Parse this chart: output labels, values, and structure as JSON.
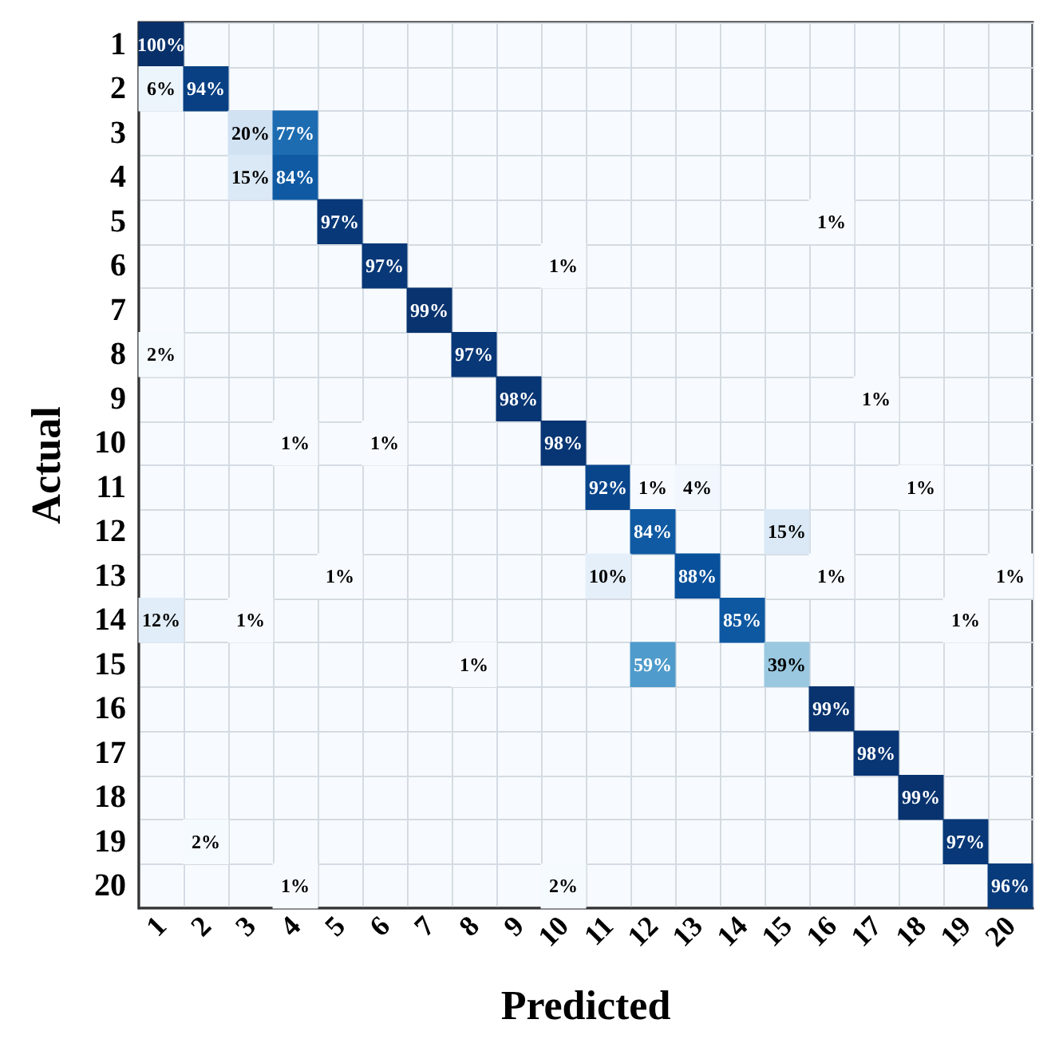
{
  "chart_data": {
    "type": "heatmap",
    "xlabel": "Predicted",
    "ylabel": "Actual",
    "grid": true,
    "categories": [
      "1",
      "2",
      "3",
      "4",
      "5",
      "6",
      "7",
      "8",
      "9",
      "10",
      "11",
      "12",
      "13",
      "14",
      "15",
      "16",
      "17",
      "18",
      "19",
      "20"
    ],
    "y_categories": [
      "1",
      "2",
      "3",
      "4",
      "5",
      "6",
      "7",
      "8",
      "9",
      "10",
      "11",
      "12",
      "13",
      "14",
      "15",
      "16",
      "17",
      "18",
      "19",
      "20"
    ],
    "cells": [
      [
        100,
        null,
        null,
        null,
        null,
        null,
        null,
        null,
        null,
        null,
        null,
        null,
        null,
        null,
        null,
        null,
        null,
        null,
        null,
        null
      ],
      [
        6,
        94,
        null,
        null,
        null,
        null,
        null,
        null,
        null,
        null,
        null,
        null,
        null,
        null,
        null,
        null,
        null,
        null,
        null,
        null
      ],
      [
        null,
        null,
        20,
        77,
        null,
        null,
        null,
        null,
        null,
        null,
        null,
        null,
        null,
        null,
        null,
        null,
        null,
        null,
        null,
        null
      ],
      [
        null,
        null,
        15,
        84,
        null,
        null,
        null,
        null,
        null,
        null,
        null,
        null,
        null,
        null,
        null,
        null,
        null,
        null,
        null,
        null
      ],
      [
        null,
        null,
        null,
        null,
        97,
        null,
        null,
        null,
        null,
        null,
        null,
        null,
        null,
        null,
        null,
        1,
        null,
        null,
        null,
        null
      ],
      [
        null,
        null,
        null,
        null,
        null,
        97,
        null,
        null,
        null,
        1,
        null,
        null,
        null,
        null,
        null,
        null,
        null,
        null,
        null,
        null
      ],
      [
        null,
        null,
        null,
        null,
        null,
        null,
        99,
        null,
        null,
        null,
        null,
        null,
        null,
        null,
        null,
        null,
        null,
        null,
        null,
        null
      ],
      [
        2,
        null,
        null,
        null,
        null,
        null,
        null,
        97,
        null,
        null,
        null,
        null,
        null,
        null,
        null,
        null,
        null,
        null,
        null,
        null
      ],
      [
        null,
        null,
        null,
        null,
        null,
        null,
        null,
        null,
        98,
        null,
        null,
        null,
        null,
        null,
        null,
        null,
        1,
        null,
        null,
        null
      ],
      [
        null,
        null,
        null,
        1,
        null,
        1,
        null,
        null,
        null,
        98,
        null,
        null,
        null,
        null,
        null,
        null,
        null,
        null,
        null,
        null
      ],
      [
        null,
        null,
        null,
        null,
        null,
        null,
        null,
        null,
        null,
        null,
        92,
        1,
        4,
        null,
        null,
        null,
        null,
        1,
        null,
        null
      ],
      [
        null,
        null,
        null,
        null,
        null,
        null,
        null,
        null,
        null,
        null,
        null,
        84,
        null,
        null,
        15,
        null,
        null,
        null,
        null,
        null
      ],
      [
        null,
        null,
        null,
        null,
        1,
        null,
        null,
        null,
        null,
        null,
        10,
        null,
        88,
        null,
        null,
        1,
        null,
        null,
        null,
        1
      ],
      [
        12,
        null,
        1,
        null,
        null,
        null,
        null,
        null,
        null,
        null,
        null,
        null,
        null,
        85,
        null,
        null,
        null,
        null,
        1,
        null
      ],
      [
        null,
        null,
        null,
        null,
        null,
        null,
        null,
        1,
        null,
        null,
        null,
        59,
        null,
        null,
        39,
        null,
        null,
        null,
        null,
        null
      ],
      [
        null,
        null,
        null,
        null,
        null,
        null,
        null,
        null,
        null,
        null,
        null,
        null,
        null,
        null,
        null,
        99,
        null,
        null,
        null,
        null
      ],
      [
        null,
        null,
        null,
        null,
        null,
        null,
        null,
        null,
        null,
        null,
        null,
        null,
        null,
        null,
        null,
        null,
        98,
        null,
        null,
        null
      ],
      [
        null,
        null,
        null,
        null,
        null,
        null,
        null,
        null,
        null,
        null,
        null,
        null,
        null,
        null,
        null,
        null,
        null,
        99,
        null,
        null
      ],
      [
        null,
        2,
        null,
        null,
        null,
        null,
        null,
        null,
        null,
        null,
        null,
        null,
        null,
        null,
        null,
        null,
        null,
        null,
        97,
        null
      ],
      [
        null,
        null,
        null,
        1,
        null,
        null,
        null,
        null,
        null,
        2,
        null,
        null,
        null,
        null,
        null,
        null,
        null,
        null,
        null,
        96
      ]
    ],
    "cell_labels": [
      [
        "100%",
        null,
        null,
        null,
        null,
        null,
        null,
        null,
        null,
        null,
        null,
        null,
        null,
        null,
        null,
        null,
        null,
        null,
        null,
        null
      ],
      [
        "6%",
        "94%",
        null,
        null,
        null,
        null,
        null,
        null,
        null,
        null,
        null,
        null,
        null,
        null,
        null,
        null,
        null,
        null,
        null,
        null
      ],
      [
        null,
        null,
        "20%",
        "77%",
        null,
        null,
        null,
        null,
        null,
        null,
        null,
        null,
        null,
        null,
        null,
        null,
        null,
        null,
        null,
        null
      ],
      [
        null,
        null,
        "15%",
        "84%",
        null,
        null,
        null,
        null,
        null,
        null,
        null,
        null,
        null,
        null,
        null,
        null,
        null,
        null,
        null,
        null
      ],
      [
        null,
        null,
        null,
        null,
        "97%",
        null,
        null,
        null,
        null,
        null,
        null,
        null,
        null,
        null,
        null,
        "1%",
        null,
        null,
        null,
        null
      ],
      [
        null,
        null,
        null,
        null,
        null,
        "97%",
        null,
        null,
        null,
        "1%",
        null,
        null,
        null,
        null,
        null,
        null,
        null,
        null,
        null,
        null
      ],
      [
        null,
        null,
        null,
        null,
        null,
        null,
        "99%",
        null,
        null,
        null,
        null,
        null,
        null,
        null,
        null,
        null,
        null,
        null,
        null,
        null
      ],
      [
        "2%",
        null,
        null,
        null,
        null,
        null,
        null,
        "97%",
        null,
        null,
        null,
        null,
        null,
        null,
        null,
        null,
        null,
        null,
        null,
        null
      ],
      [
        null,
        null,
        null,
        null,
        null,
        null,
        null,
        null,
        "98%",
        null,
        null,
        null,
        null,
        null,
        null,
        null,
        "1%",
        null,
        null,
        null
      ],
      [
        null,
        null,
        null,
        "1%",
        null,
        "1%",
        null,
        null,
        null,
        "98%",
        null,
        null,
        null,
        null,
        null,
        null,
        null,
        null,
        null,
        null
      ],
      [
        null,
        null,
        null,
        null,
        null,
        null,
        null,
        null,
        null,
        null,
        "92%",
        "1%",
        "4%",
        null,
        null,
        null,
        null,
        "1%",
        null,
        null
      ],
      [
        null,
        null,
        null,
        null,
        null,
        null,
        null,
        null,
        null,
        null,
        null,
        "84%",
        null,
        null,
        "15%",
        null,
        null,
        null,
        null,
        null
      ],
      [
        null,
        null,
        null,
        null,
        "1%",
        null,
        null,
        null,
        null,
        null,
        "10%",
        null,
        "88%",
        null,
        null,
        "1%",
        null,
        null,
        null,
        "1%"
      ],
      [
        "12%",
        null,
        "1%",
        null,
        null,
        null,
        null,
        null,
        null,
        null,
        null,
        null,
        null,
        "85%",
        null,
        null,
        null,
        null,
        "1%",
        null
      ],
      [
        null,
        null,
        null,
        null,
        null,
        null,
        null,
        "1%",
        null,
        null,
        null,
        "59%",
        null,
        null,
        "39%",
        null,
        null,
        null,
        null,
        null
      ],
      [
        null,
        null,
        null,
        null,
        null,
        null,
        null,
        null,
        null,
        null,
        null,
        null,
        null,
        null,
        null,
        "99%",
        null,
        null,
        null,
        null
      ],
      [
        null,
        null,
        null,
        null,
        null,
        null,
        null,
        null,
        null,
        null,
        null,
        null,
        null,
        null,
        null,
        null,
        "98%",
        null,
        null,
        null
      ],
      [
        null,
        null,
        null,
        null,
        null,
        null,
        null,
        null,
        null,
        null,
        null,
        null,
        null,
        null,
        null,
        null,
        null,
        "99%",
        null,
        null
      ],
      [
        null,
        "2%",
        null,
        null,
        null,
        null,
        null,
        null,
        null,
        null,
        null,
        null,
        null,
        null,
        null,
        null,
        null,
        null,
        "97%",
        null
      ],
      [
        null,
        null,
        null,
        "1%",
        null,
        null,
        null,
        null,
        null,
        "2%",
        null,
        null,
        null,
        null,
        null,
        null,
        null,
        null,
        null,
        "96%"
      ]
    ]
  }
}
